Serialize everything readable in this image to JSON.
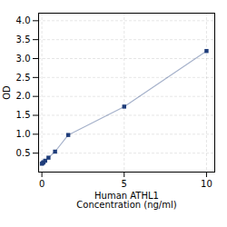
{
  "chart_data": {
    "type": "line",
    "xlabel": "Human ATHL1\nConcentration (ng/ml)",
    "ylabel": "OD",
    "x": [
      0.0,
      0.05,
      0.1,
      0.2,
      0.4,
      0.8,
      1.6,
      5.0,
      10.0
    ],
    "values": [
      0.22,
      0.24,
      0.26,
      0.3,
      0.38,
      0.54,
      0.98,
      1.73,
      3.2
    ],
    "color": "#1f3d7a",
    "marker": "square",
    "xlim": [
      -0.2,
      10.5
    ],
    "ylim": [
      0.0,
      4.2
    ],
    "xticks": [
      0,
      5,
      10
    ],
    "yticks": [
      {
        "value": 0.5,
        "label": "0.5"
      },
      {
        "value": 1.0,
        "label": "1.0"
      },
      {
        "value": 1.5,
        "label": "1.5"
      },
      {
        "value": 2.0,
        "label": "2.0"
      },
      {
        "value": 2.5,
        "label": "2.5"
      },
      {
        "value": 3.0,
        "label": "3.0"
      },
      {
        "value": 3.5,
        "label": "3.5"
      },
      {
        "value": 4.0,
        "label": "4.0"
      }
    ],
    "grid": true
  }
}
